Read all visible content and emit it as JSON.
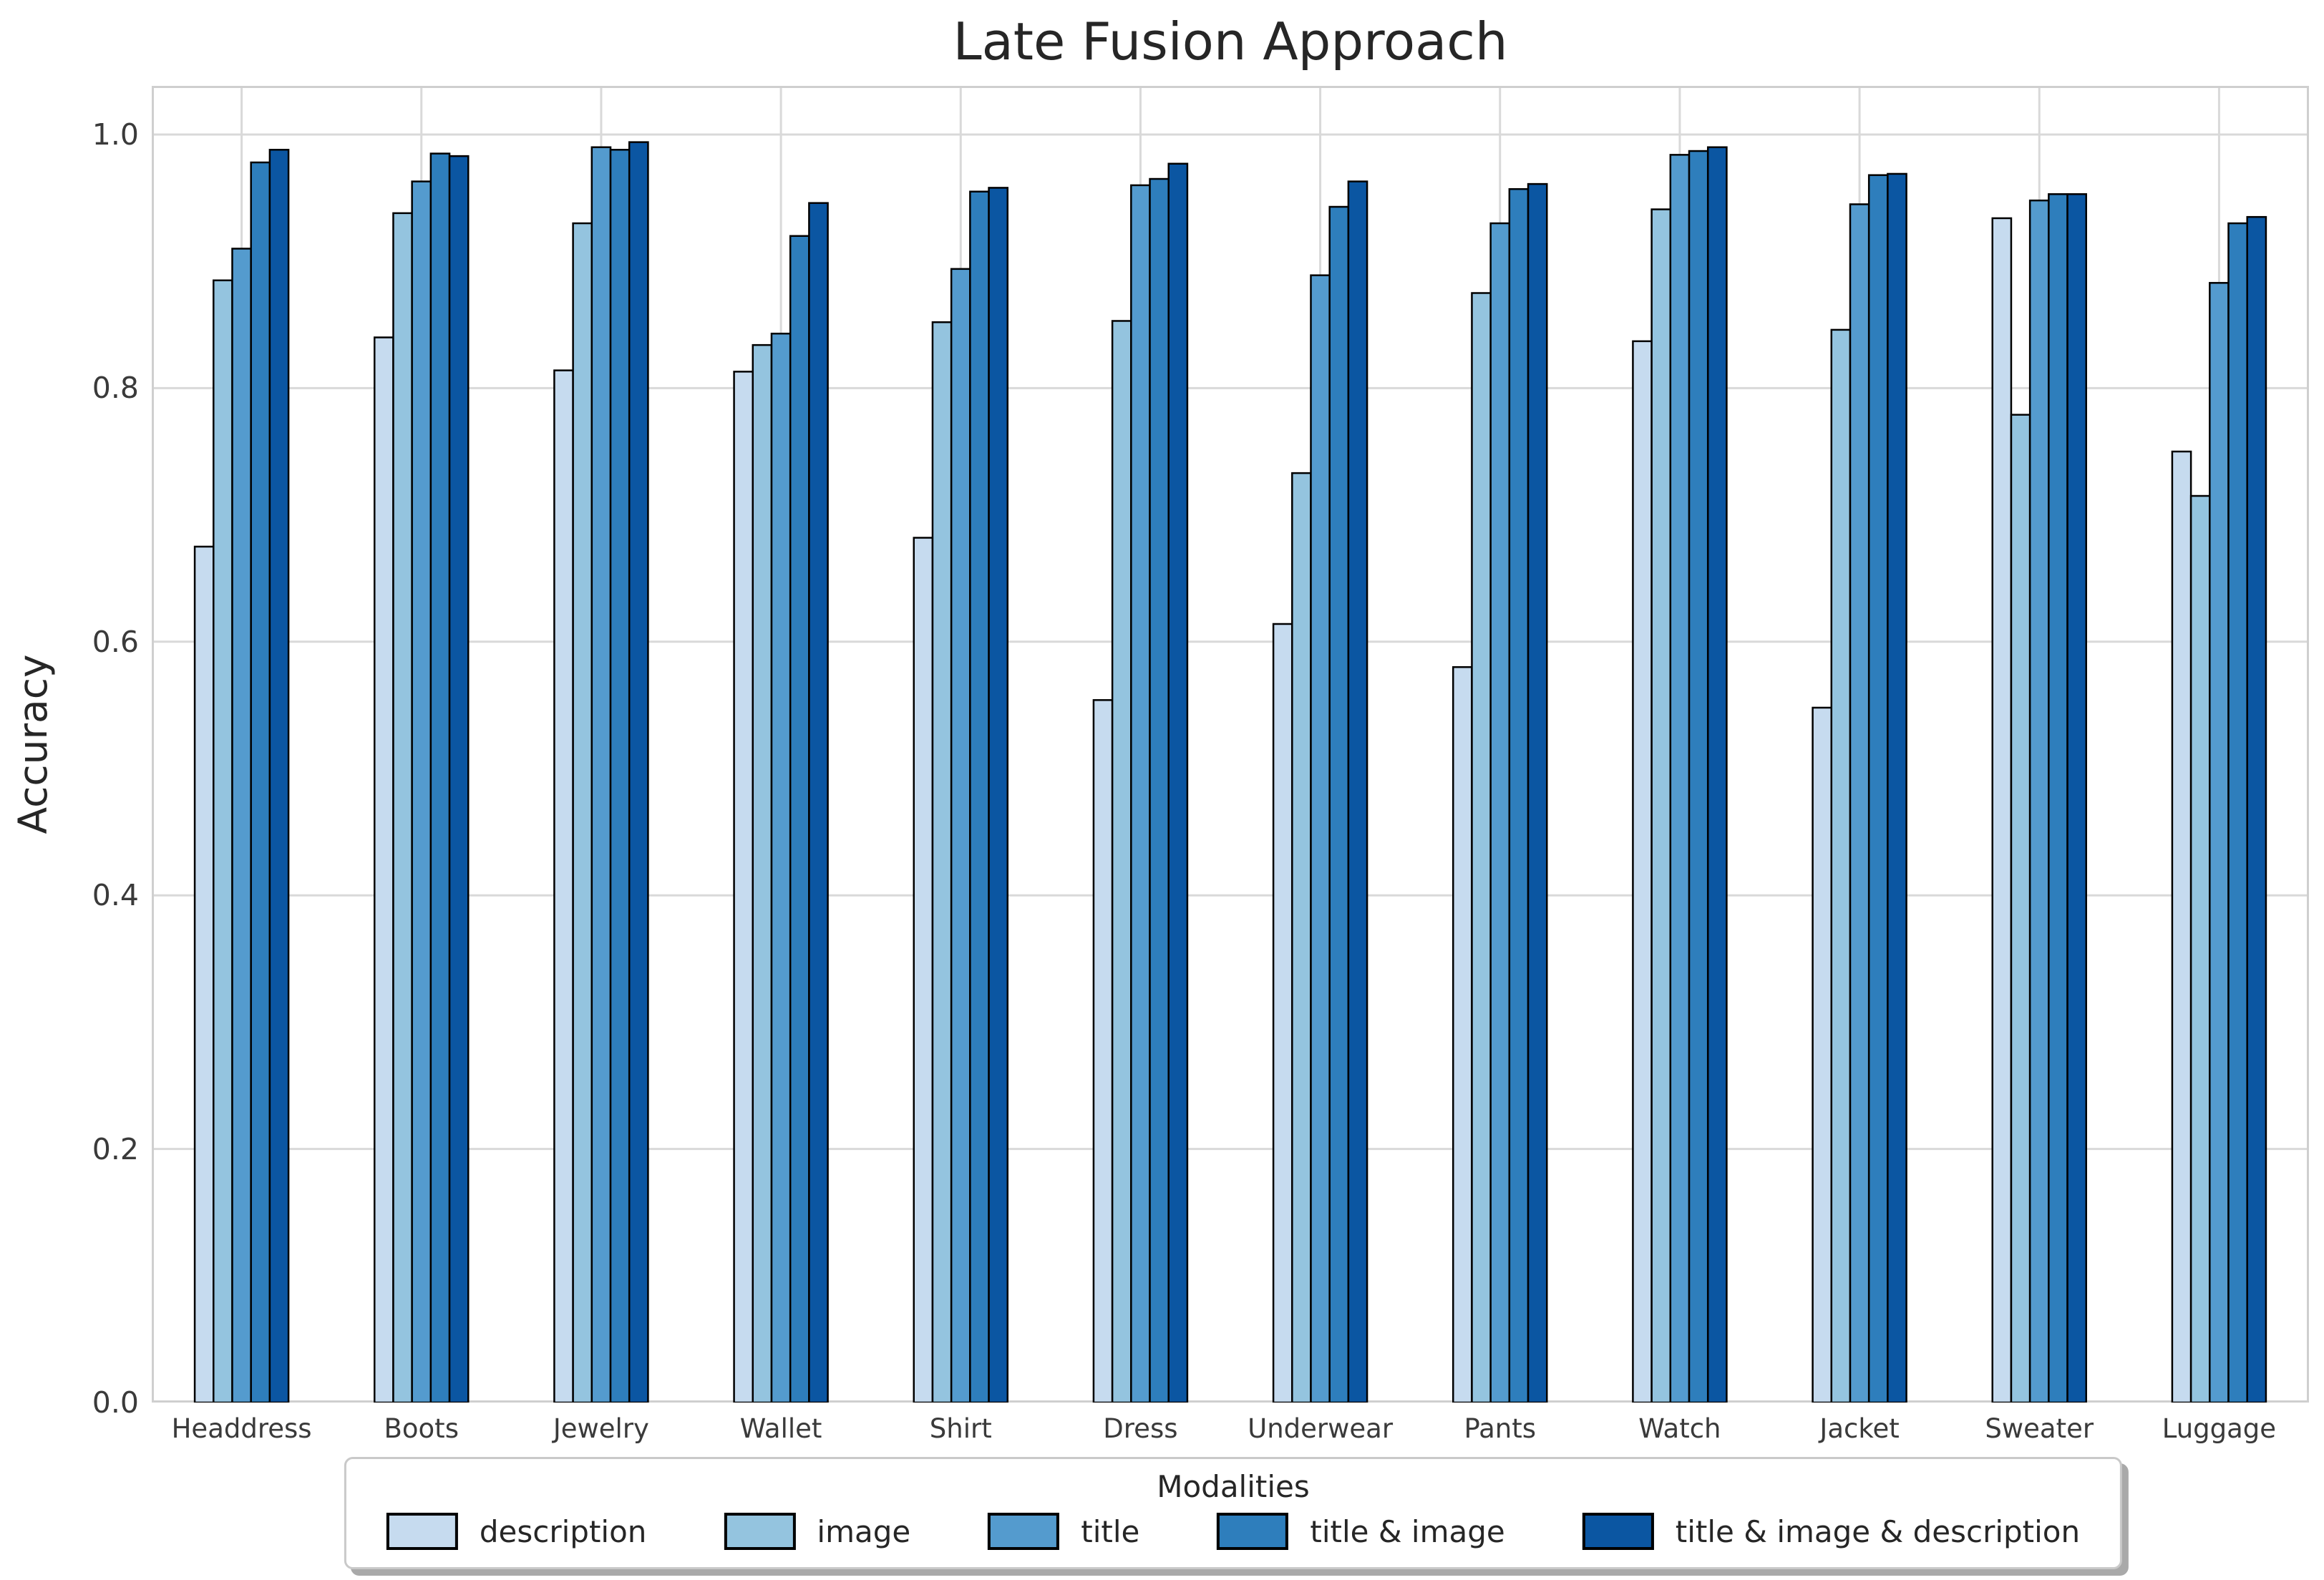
{
  "chart_data": {
    "type": "bar",
    "title": "Late Fusion Approach",
    "ylabel": "Accuracy",
    "xlabel": "",
    "legend_title": "Modalities",
    "legend_position": "bottom",
    "grid": true,
    "ylim": [
      0,
      1.038
    ],
    "yticks": [
      "0.0",
      "0.2",
      "0.4",
      "0.6",
      "0.8",
      "1.0"
    ],
    "bar_edge_color": "#000000",
    "grid_color": "#d9d9d9",
    "spine_color": "#cfcfcf",
    "categories": [
      "Headdress",
      "Boots",
      "Jewelry",
      "Wallet",
      "Shirt",
      "Dress",
      "Underwear",
      "Pants",
      "Watch",
      "Jacket",
      "Sweater",
      "Luggage"
    ],
    "series": [
      {
        "name": "description",
        "color": "#c6dbef",
        "values": [
          0.675,
          0.84,
          0.814,
          0.813,
          0.682,
          0.554,
          0.614,
          0.58,
          0.837,
          0.548,
          0.934,
          0.75
        ]
      },
      {
        "name": "image",
        "color": "#94c4df",
        "values": [
          0.885,
          0.938,
          0.93,
          0.834,
          0.852,
          0.853,
          0.733,
          0.875,
          0.941,
          0.846,
          0.779,
          0.715
        ]
      },
      {
        "name": "title",
        "color": "#549bce",
        "values": [
          0.91,
          0.963,
          0.99,
          0.843,
          0.894,
          0.96,
          0.889,
          0.93,
          0.984,
          0.945,
          0.948,
          0.883
        ]
      },
      {
        "name": "title & image",
        "color": "#2e7ebc",
        "values": [
          0.978,
          0.985,
          0.988,
          0.92,
          0.955,
          0.965,
          0.943,
          0.957,
          0.987,
          0.968,
          0.953,
          0.93
        ]
      },
      {
        "name": "title & image & description",
        "color": "#0b56a2",
        "values": [
          0.988,
          0.983,
          0.994,
          0.946,
          0.958,
          0.977,
          0.963,
          0.961,
          0.99,
          0.969,
          0.953,
          0.935
        ]
      }
    ]
  }
}
